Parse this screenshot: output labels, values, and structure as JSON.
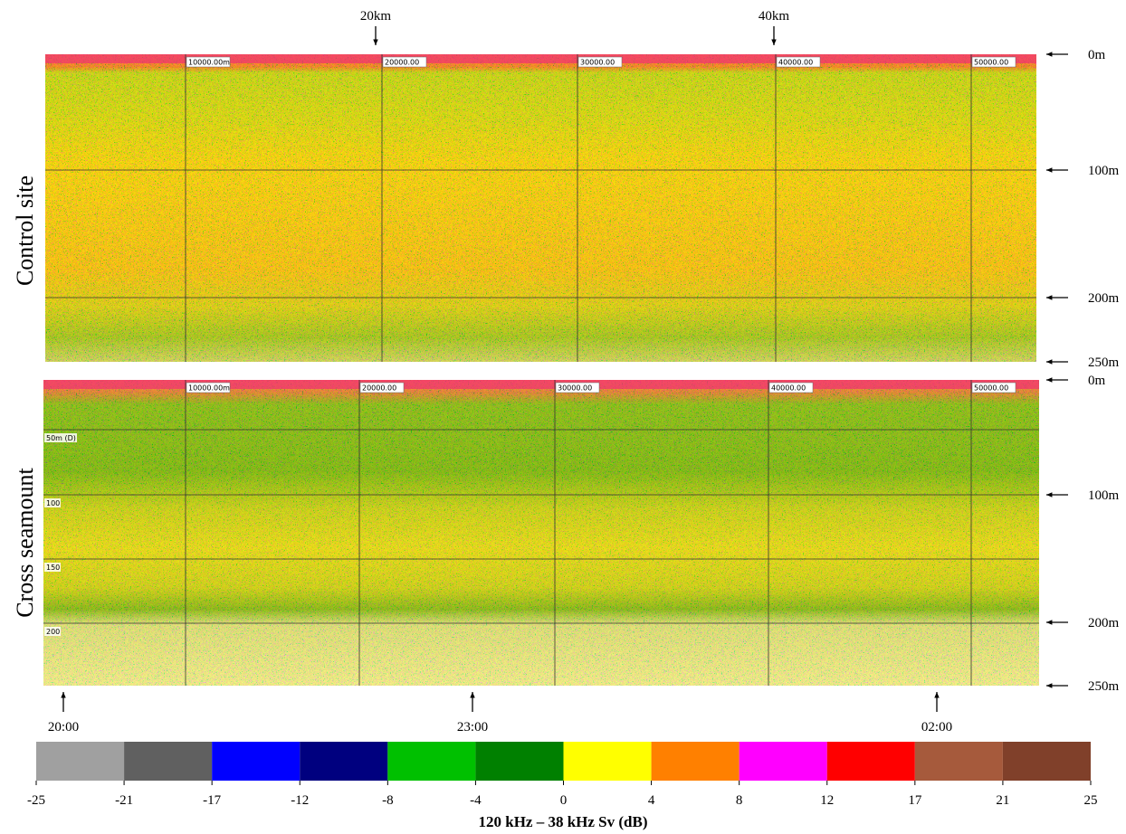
{
  "distance_markers": [
    "20km",
    "40km"
  ],
  "panels": [
    {
      "ylabel": "Control site",
      "depth_labels": [
        "0m",
        "100m",
        "200m",
        "250m"
      ],
      "grid_labels": [
        "10000.00m",
        "20000.00",
        "30000.00",
        "40000.00",
        "50000.00"
      ]
    },
    {
      "ylabel": "Cross seamount",
      "depth_labels": [
        "0m",
        "100m",
        "200m",
        "250m"
      ],
      "grid_labels": [
        "10000.00m",
        "20000.00",
        "30000.00",
        "40000.00",
        "50000.00"
      ],
      "depth_grid_labels": [
        "50m (D)",
        "100",
        "150",
        "200"
      ]
    }
  ],
  "time_markers": [
    "20:00",
    "23:00",
    "02:00"
  ],
  "colorbar": {
    "label": "120 kHz – 38 kHz Sv (dB)",
    "ticks": [
      -25,
      -21,
      -17,
      -12,
      -8,
      -4,
      0,
      4,
      8,
      12,
      17,
      21,
      25
    ],
    "colors": [
      "#a0a0a0",
      "#606060",
      "#0000ff",
      "#00007f",
      "#00c000",
      "#008000",
      "#ffff00",
      "#ff8000",
      "#ff00ff",
      "#ff0000",
      "#a65a3c",
      "#80402a"
    ]
  }
}
